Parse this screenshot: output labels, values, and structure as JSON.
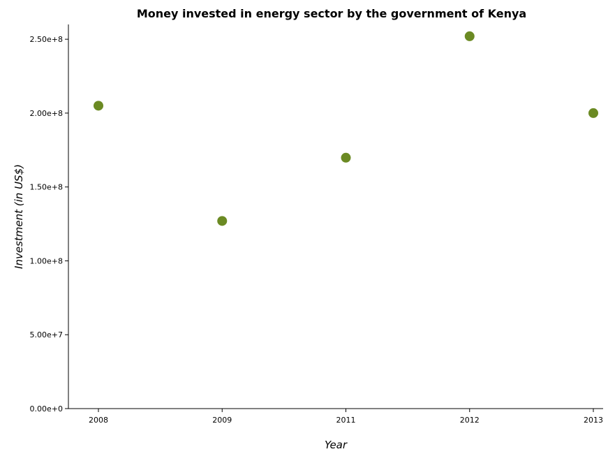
{
  "chart_data": {
    "type": "scatter",
    "title": "Money invested in energy sector by the government of Kenya",
    "xlabel": "Year",
    "ylabel": "Investment (in US$)",
    "categories": [
      "2008",
      "2009",
      "2011",
      "2012",
      "2013"
    ],
    "values": [
      205000000,
      127000000,
      169800000,
      252000000,
      200000000
    ],
    "ylim": [
      0,
      260000000
    ],
    "yticks": [
      0,
      50000000,
      100000000,
      150000000,
      200000000,
      250000000
    ],
    "ytick_labels": [
      "0.00e+0",
      "5.00e+7",
      "1.00e+8",
      "1.50e+8",
      "2.00e+8",
      "2.50e+8"
    ],
    "point_color": "#6b8a23",
    "grid": false,
    "legend": "none"
  }
}
